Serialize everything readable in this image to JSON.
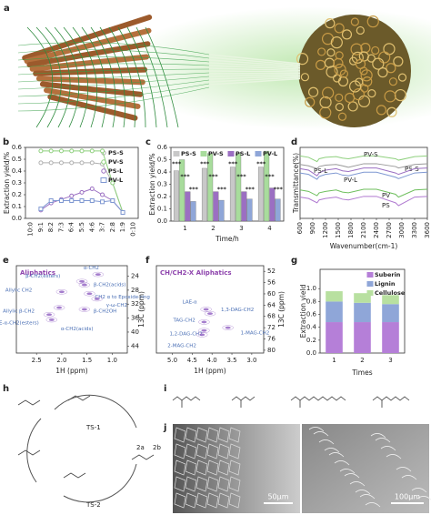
{
  "figure": {
    "panel_labels": [
      "a",
      "b",
      "c",
      "d",
      "e",
      "f",
      "g",
      "h",
      "i",
      "j"
    ]
  },
  "chart_data": [
    {
      "type": "line",
      "ylabel": "Extraction yield/%",
      "categories": [
        "10:0",
        "9:1",
        "8:2",
        "7:3",
        "6:4",
        "5:5",
        "4:6",
        "3:7",
        "2:8",
        "1:9",
        "0:10"
      ],
      "ylim": [
        0,
        0.6
      ],
      "yticks": [
        {
          "value": 0,
          "label": "0.0"
        },
        0.1,
        0.2,
        0.3,
        0.4,
        0.5,
        0.6
      ],
      "legend": "upper right",
      "series": [
        {
          "name": "PS-S",
          "color": "#b0b0b0",
          "marker": "circle",
          "values": [
            null,
            0.47,
            0.47,
            0.47,
            0.47,
            0.47,
            0.47,
            0.46,
            0.3,
            0.05,
            null
          ]
        },
        {
          "name": "PV-S",
          "color": "#8fd07e",
          "marker": "circle",
          "values": [
            null,
            0.57,
            0.57,
            0.57,
            0.57,
            0.57,
            0.57,
            0.57,
            0.3,
            0.05,
            null
          ]
        },
        {
          "name": "PS-L",
          "color": "#9b6fc2",
          "marker": "circle",
          "values": [
            null,
            0.07,
            0.13,
            0.16,
            0.19,
            0.22,
            0.25,
            0.2,
            0.15,
            0.05,
            null
          ]
        },
        {
          "name": "PV-L",
          "color": "#7f98d2",
          "marker": "square",
          "values": [
            null,
            0.08,
            0.15,
            0.15,
            0.15,
            0.15,
            0.15,
            0.14,
            0.15,
            0.05,
            null
          ]
        }
      ]
    },
    {
      "type": "bar",
      "xlabel": "Time/h",
      "ylabel": "Extraction yield/%",
      "categories": [
        "1",
        "2",
        "3",
        "4"
      ],
      "ylim": [
        0,
        0.6
      ],
      "yticks": [
        {
          "value": 0,
          "label": "0.0"
        },
        0.1,
        0.2,
        0.3,
        0.4,
        0.5,
        0.6
      ],
      "legend": "top",
      "series": [
        {
          "name": "PS-S",
          "color": "#c8c8c8",
          "values": [
            0.41,
            0.43,
            0.44,
            0.44
          ]
        },
        {
          "name": "PV-S",
          "color": "#a8dc9c",
          "values": [
            0.5,
            0.55,
            0.55,
            0.57
          ]
        },
        {
          "name": "PS-L",
          "color": "#9b6fc2",
          "values": [
            0.24,
            0.24,
            0.24,
            0.27
          ]
        },
        {
          "name": "PV-L",
          "color": "#8fa6d8",
          "values": [
            0.16,
            0.17,
            0.18,
            0.18
          ]
        }
      ],
      "significance": [
        "***",
        "***",
        "***",
        "***",
        "***",
        "***",
        "***",
        "***",
        "***",
        "***",
        "***",
        "***"
      ]
    },
    {
      "type": "line",
      "xlabel": "Wavenumber(cm-1)",
      "ylabel": "Transmittance(%)",
      "x": [
        600,
        800,
        1000,
        1050,
        1200,
        1450,
        1600,
        1740,
        2100,
        2400,
        2850,
        2920,
        3300,
        3600
      ],
      "xlim": [
        600,
        3600
      ],
      "xticks": [
        600,
        900,
        1200,
        1500,
        1800,
        2100,
        2400,
        2700,
        3000,
        3300,
        3600
      ],
      "ylim": [
        0,
        100
      ],
      "legend": "inline",
      "series": [
        {
          "name": "PV-S",
          "color": "#8fd07e",
          "values": [
            88,
            86,
            80,
            84,
            86,
            87,
            85,
            84,
            88,
            88,
            84,
            82,
            87,
            88
          ]
        },
        {
          "name": "PS-S",
          "color": "#9a9a9a",
          "values": [
            76,
            74,
            70,
            73,
            75,
            76,
            74,
            72,
            77,
            77,
            73,
            71,
            76,
            77
          ]
        },
        {
          "name": "PS-L",
          "color": "#9b6fc2",
          "values": [
            70,
            68,
            60,
            64,
            68,
            70,
            67,
            66,
            71,
            71,
            64,
            62,
            70,
            71
          ]
        },
        {
          "name": "PV-L",
          "color": "#7f98d2",
          "values": [
            64,
            62,
            55,
            59,
            62,
            64,
            61,
            60,
            65,
            65,
            58,
            56,
            64,
            65
          ]
        },
        {
          "name": "PV",
          "color": "#6fbf5e",
          "values": [
            40,
            38,
            32,
            36,
            38,
            40,
            37,
            36,
            41,
            41,
            34,
            30,
            40,
            41
          ]
        },
        {
          "name": "PS",
          "color": "#b07ad0",
          "values": [
            30,
            28,
            22,
            26,
            28,
            30,
            27,
            26,
            31,
            31,
            22,
            18,
            30,
            31
          ]
        }
      ]
    },
    {
      "type": "scatter",
      "title": "Aliphatics",
      "xlabel": "1H (ppm)",
      "ylabel": "13C (ppm)",
      "xlim": [
        2.9,
        0.7
      ],
      "xticks": [
        2.5,
        {
          "value": 2,
          "label": "2.0"
        },
        1.5,
        {
          "value": 1,
          "label": "1.0"
        }
      ],
      "ylim": [
        46,
        21
      ],
      "yticks": [
        24,
        28,
        32,
        36,
        40,
        44
      ],
      "color": "#8e5cc0",
      "labels": [
        "α-CH2",
        "β-CH2(esters)",
        "β-CH2(acids)",
        "Allylic CH2",
        "CH2 α to Epoxide-ring",
        "γ-ω-CH2",
        "Allylic β-CH2",
        "LAE-α-CH2(esters)",
        "β-CH2OH",
        "α-CH2(acids)"
      ],
      "x": [
        1.28,
        1.6,
        1.55,
        2.0,
        1.45,
        1.3,
        2.05,
        2.25,
        1.55,
        2.2
      ],
      "values": [
        23.5,
        25.5,
        26.5,
        28.5,
        29,
        30.5,
        33,
        35,
        33.5,
        36.5
      ]
    },
    {
      "type": "scatter",
      "title": "CH/CH2-X Aliphatics",
      "xlabel": "1H (ppm)",
      "ylabel": "13C (ppm)",
      "xlim": [
        5.4,
        2.7
      ],
      "xticks": [
        {
          "value": 5,
          "label": "5.0"
        },
        4.5,
        {
          "value": 4,
          "label": "4.0"
        },
        3.5,
        {
          "value": 3,
          "label": "3.0"
        }
      ],
      "ylim": [
        81,
        50
      ],
      "yticks": [
        52,
        56,
        60,
        64,
        68,
        72,
        76,
        80
      ],
      "color": "#8e5cc0",
      "labels": [
        "LAE-α",
        "1,3-DAG-CH2",
        "TAG-CH2",
        "1,2-DAG-CH2",
        "2-MAG-CH2",
        "1-MAG-CH2"
      ],
      "x": [
        4.15,
        4.05,
        4.2,
        4.2,
        4.25,
        3.6
      ],
      "values": [
        65.5,
        67,
        70,
        73,
        74.5,
        72
      ]
    },
    {
      "type": "stacked_bar",
      "xlabel": "Times",
      "ylabel": "Extraction yield",
      "categories": [
        "1",
        "2",
        "3"
      ],
      "ylim": [
        0,
        1.3
      ],
      "yticks": [
        {
          "value": 0,
          "label": "0.0"
        },
        0.2,
        0.4,
        0.6,
        0.8,
        {
          "value": 1,
          "label": "1.0"
        }
      ],
      "legend": "upper right",
      "series": [
        {
          "name": "Suberin",
          "color": "#b57fd8",
          "values": [
            0.48,
            0.48,
            0.48
          ]
        },
        {
          "name": "Lignin",
          "color": "#8fa6d8",
          "values": [
            0.32,
            0.3,
            0.28
          ]
        },
        {
          "name": "Cellulose",
          "color": "#b8e0a0",
          "values": [
            0.16,
            0.15,
            0.14
          ]
        }
      ]
    }
  ],
  "scheme": {
    "labels": [
      "TS-1",
      "TS-2",
      "2a",
      "2b"
    ]
  },
  "micrographs": {
    "scale_bars": [
      "50μm",
      "100μm"
    ]
  }
}
